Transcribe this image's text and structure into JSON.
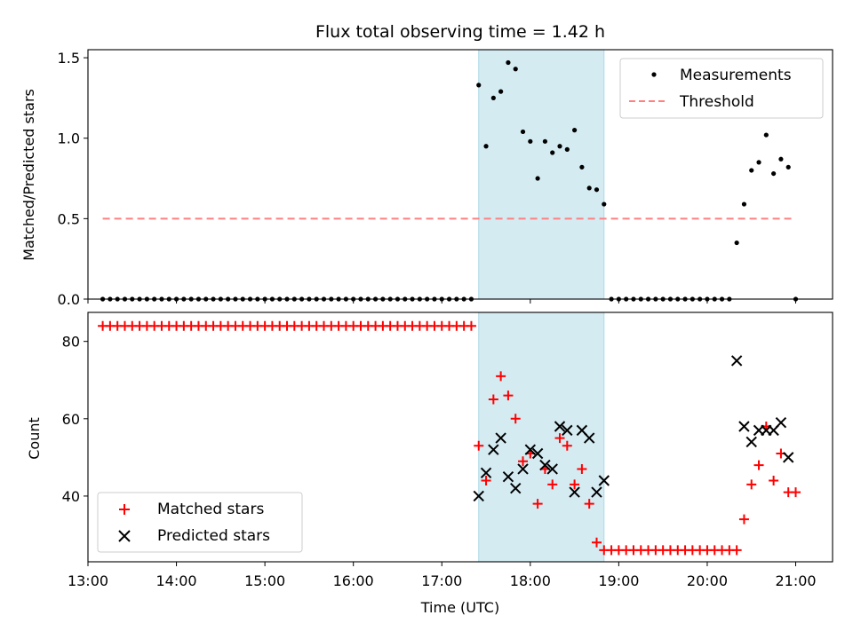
{
  "chart_data": [
    {
      "type": "scatter",
      "title": "Flux total observing time = 1.42 h",
      "xlabel": "",
      "ylabel": "Matched/Predicted stars",
      "x_range": [
        "13:00",
        "21:25"
      ],
      "ylim": [
        0,
        1.55
      ],
      "yticks": [
        0,
        0.5,
        1.0,
        1.5
      ],
      "ytick_labels": [
        "0.0",
        "0.5",
        "1.0",
        "1.5"
      ],
      "grid": false,
      "legend_position": "top-right",
      "highlight_band": {
        "start": "17:25",
        "end": "18:50",
        "color": "#add8e6"
      },
      "threshold": {
        "name": "Threshold",
        "value": 0.5,
        "start": "13:10",
        "end": "20:57",
        "color": "#ff8080"
      },
      "series": [
        {
          "name": "Measurements",
          "marker": "dot",
          "color": "#000000",
          "points": [
            [
              "13:10",
              0
            ],
            [
              "13:15",
              0
            ],
            [
              "13:20",
              0
            ],
            [
              "13:25",
              0
            ],
            [
              "13:30",
              0
            ],
            [
              "13:35",
              0
            ],
            [
              "13:40",
              0
            ],
            [
              "13:45",
              0
            ],
            [
              "13:50",
              0
            ],
            [
              "13:55",
              0
            ],
            [
              "14:00",
              0
            ],
            [
              "14:05",
              0
            ],
            [
              "14:10",
              0
            ],
            [
              "14:15",
              0
            ],
            [
              "14:20",
              0
            ],
            [
              "14:25",
              0
            ],
            [
              "14:30",
              0
            ],
            [
              "14:35",
              0
            ],
            [
              "14:40",
              0
            ],
            [
              "14:45",
              0
            ],
            [
              "14:50",
              0
            ],
            [
              "14:55",
              0
            ],
            [
              "15:00",
              0
            ],
            [
              "15:05",
              0
            ],
            [
              "15:10",
              0
            ],
            [
              "15:15",
              0
            ],
            [
              "15:20",
              0
            ],
            [
              "15:25",
              0
            ],
            [
              "15:30",
              0
            ],
            [
              "15:35",
              0
            ],
            [
              "15:40",
              0
            ],
            [
              "15:45",
              0
            ],
            [
              "15:50",
              0
            ],
            [
              "15:55",
              0
            ],
            [
              "16:00",
              0
            ],
            [
              "16:05",
              0
            ],
            [
              "16:10",
              0
            ],
            [
              "16:15",
              0
            ],
            [
              "16:20",
              0
            ],
            [
              "16:25",
              0
            ],
            [
              "16:30",
              0
            ],
            [
              "16:35",
              0
            ],
            [
              "16:40",
              0
            ],
            [
              "16:45",
              0
            ],
            [
              "16:50",
              0
            ],
            [
              "16:55",
              0
            ],
            [
              "17:00",
              0
            ],
            [
              "17:05",
              0
            ],
            [
              "17:10",
              0
            ],
            [
              "17:15",
              0
            ],
            [
              "17:20",
              0
            ],
            [
              "17:25",
              1.33
            ],
            [
              "17:30",
              0.95
            ],
            [
              "17:35",
              1.25
            ],
            [
              "17:40",
              1.29
            ],
            [
              "17:45",
              1.47
            ],
            [
              "17:50",
              1.43
            ],
            [
              "17:55",
              1.04
            ],
            [
              "18:00",
              0.98
            ],
            [
              "18:05",
              0.75
            ],
            [
              "18:10",
              0.98
            ],
            [
              "18:15",
              0.91
            ],
            [
              "18:20",
              0.95
            ],
            [
              "18:25",
              0.93
            ],
            [
              "18:30",
              1.05
            ],
            [
              "18:35",
              0.82
            ],
            [
              "18:40",
              0.69
            ],
            [
              "18:45",
              0.68
            ],
            [
              "18:50",
              0.59
            ],
            [
              "18:55",
              0
            ],
            [
              "19:00",
              0
            ],
            [
              "19:05",
              0
            ],
            [
              "19:10",
              0
            ],
            [
              "19:15",
              0
            ],
            [
              "19:20",
              0
            ],
            [
              "19:25",
              0
            ],
            [
              "19:30",
              0
            ],
            [
              "19:35",
              0
            ],
            [
              "19:40",
              0
            ],
            [
              "19:45",
              0
            ],
            [
              "19:50",
              0
            ],
            [
              "19:55",
              0
            ],
            [
              "20:00",
              0
            ],
            [
              "20:05",
              0
            ],
            [
              "20:10",
              0
            ],
            [
              "20:15",
              0
            ],
            [
              "20:20",
              0.35
            ],
            [
              "20:25",
              0.59
            ],
            [
              "20:30",
              0.8
            ],
            [
              "20:35",
              0.85
            ],
            [
              "20:40",
              1.02
            ],
            [
              "20:45",
              0.78
            ],
            [
              "20:50",
              0.87
            ],
            [
              "20:55",
              0.82
            ],
            [
              "21:00",
              0
            ]
          ]
        }
      ]
    },
    {
      "type": "scatter",
      "title": "",
      "xlabel": "Time (UTC)",
      "ylabel": "Count",
      "x_range": [
        "13:00",
        "21:25"
      ],
      "xticks": [
        "13:00",
        "14:00",
        "15:00",
        "16:00",
        "17:00",
        "18:00",
        "19:00",
        "20:00",
        "21:00"
      ],
      "ylim": [
        23,
        87.5
      ],
      "yticks": [
        40,
        60,
        80
      ],
      "ytick_labels": [
        "40",
        "60",
        "80"
      ],
      "grid": false,
      "legend_position": "lower-left",
      "highlight_band": {
        "start": "17:25",
        "end": "18:50",
        "color": "#add8e6"
      },
      "series": [
        {
          "name": "Matched stars",
          "marker": "plus",
          "color": "#ff0000",
          "points": [
            [
              "13:10",
              84
            ],
            [
              "13:15",
              84
            ],
            [
              "13:20",
              84
            ],
            [
              "13:25",
              84
            ],
            [
              "13:30",
              84
            ],
            [
              "13:35",
              84
            ],
            [
              "13:40",
              84
            ],
            [
              "13:45",
              84
            ],
            [
              "13:50",
              84
            ],
            [
              "13:55",
              84
            ],
            [
              "14:00",
              84
            ],
            [
              "14:05",
              84
            ],
            [
              "14:10",
              84
            ],
            [
              "14:15",
              84
            ],
            [
              "14:20",
              84
            ],
            [
              "14:25",
              84
            ],
            [
              "14:30",
              84
            ],
            [
              "14:35",
              84
            ],
            [
              "14:40",
              84
            ],
            [
              "14:45",
              84
            ],
            [
              "14:50",
              84
            ],
            [
              "14:55",
              84
            ],
            [
              "15:00",
              84
            ],
            [
              "15:05",
              84
            ],
            [
              "15:10",
              84
            ],
            [
              "15:15",
              84
            ],
            [
              "15:20",
              84
            ],
            [
              "15:25",
              84
            ],
            [
              "15:30",
              84
            ],
            [
              "15:35",
              84
            ],
            [
              "15:40",
              84
            ],
            [
              "15:45",
              84
            ],
            [
              "15:50",
              84
            ],
            [
              "15:55",
              84
            ],
            [
              "16:00",
              84
            ],
            [
              "16:05",
              84
            ],
            [
              "16:10",
              84
            ],
            [
              "16:15",
              84
            ],
            [
              "16:20",
              84
            ],
            [
              "16:25",
              84
            ],
            [
              "16:30",
              84
            ],
            [
              "16:35",
              84
            ],
            [
              "16:40",
              84
            ],
            [
              "16:45",
              84
            ],
            [
              "16:50",
              84
            ],
            [
              "16:55",
              84
            ],
            [
              "17:00",
              84
            ],
            [
              "17:05",
              84
            ],
            [
              "17:10",
              84
            ],
            [
              "17:15",
              84
            ],
            [
              "17:20",
              84
            ],
            [
              "17:25",
              53
            ],
            [
              "17:30",
              44
            ],
            [
              "17:35",
              65
            ],
            [
              "17:40",
              71
            ],
            [
              "17:45",
              66
            ],
            [
              "17:50",
              60
            ],
            [
              "17:55",
              49
            ],
            [
              "18:00",
              51
            ],
            [
              "18:05",
              38
            ],
            [
              "18:10",
              47
            ],
            [
              "18:15",
              43
            ],
            [
              "18:20",
              55
            ],
            [
              "18:25",
              53
            ],
            [
              "18:30",
              43
            ],
            [
              "18:35",
              47
            ],
            [
              "18:40",
              38
            ],
            [
              "18:45",
              28
            ],
            [
              "18:50",
              26
            ],
            [
              "18:55",
              26
            ],
            [
              "19:00",
              26
            ],
            [
              "19:05",
              26
            ],
            [
              "19:10",
              26
            ],
            [
              "19:15",
              26
            ],
            [
              "19:20",
              26
            ],
            [
              "19:25",
              26
            ],
            [
              "19:30",
              26
            ],
            [
              "19:35",
              26
            ],
            [
              "19:40",
              26
            ],
            [
              "19:45",
              26
            ],
            [
              "19:50",
              26
            ],
            [
              "19:55",
              26
            ],
            [
              "20:00",
              26
            ],
            [
              "20:05",
              26
            ],
            [
              "20:10",
              26
            ],
            [
              "20:15",
              26
            ],
            [
              "20:20",
              26
            ],
            [
              "20:25",
              34
            ],
            [
              "20:30",
              43
            ],
            [
              "20:35",
              48
            ],
            [
              "20:40",
              58
            ],
            [
              "20:45",
              44
            ],
            [
              "20:50",
              51
            ],
            [
              "20:55",
              41
            ],
            [
              "21:00",
              41
            ]
          ]
        },
        {
          "name": "Predicted stars",
          "marker": "x",
          "color": "#000000",
          "points": [
            [
              "17:25",
              40
            ],
            [
              "17:30",
              46
            ],
            [
              "17:35",
              52
            ],
            [
              "17:40",
              55
            ],
            [
              "17:45",
              45
            ],
            [
              "17:50",
              42
            ],
            [
              "17:55",
              47
            ],
            [
              "18:00",
              52
            ],
            [
              "18:05",
              51
            ],
            [
              "18:10",
              48
            ],
            [
              "18:15",
              47
            ],
            [
              "18:20",
              58
            ],
            [
              "18:25",
              57
            ],
            [
              "18:30",
              41
            ],
            [
              "18:35",
              57
            ],
            [
              "18:40",
              55
            ],
            [
              "18:45",
              41
            ],
            [
              "18:50",
              44
            ],
            [
              "20:20",
              75
            ],
            [
              "20:25",
              58
            ],
            [
              "20:30",
              54
            ],
            [
              "20:35",
              57
            ],
            [
              "20:40",
              57
            ],
            [
              "20:45",
              57
            ],
            [
              "20:50",
              59
            ],
            [
              "20:55",
              50
            ]
          ]
        }
      ]
    }
  ]
}
